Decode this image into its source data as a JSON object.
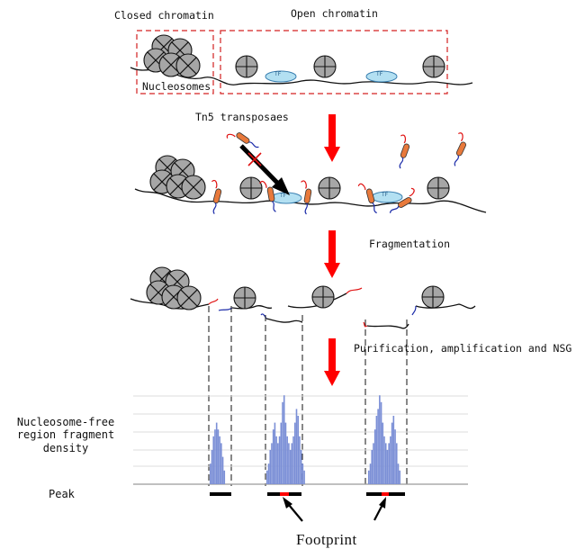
{
  "labels": {
    "closed_chromatin": "Closed chromatin",
    "open_chromatin": "Open chromatin",
    "nucleosomes": "Nucleosomes",
    "tn5": "Tn5 transposaes",
    "tf": "TF",
    "fragmentation": "Fragmentation",
    "purification": "Purification, amplification and NSG",
    "density_line1": "Nucleosome-free",
    "density_line2": "region fragment",
    "density_line3": "density",
    "peak": "Peak",
    "footprint": "Footprint"
  },
  "colors": {
    "arrow": "#ff0000",
    "nucleosome": "#a6a6a6",
    "tf": "#b3e0f2",
    "bars": "#7b8fd6",
    "transposase": "#e8793b",
    "footprint_mark": "#ff0000"
  },
  "chart_data": {
    "type": "bar",
    "title": "",
    "xlabel": "",
    "ylabel": "Nucleosome-free region fragment density",
    "grid": true,
    "series": [
      {
        "values": [
          3,
          5,
          7,
          8,
          9,
          8,
          7,
          6,
          4,
          2
        ]
      },
      {
        "values": [
          2,
          3,
          5,
          6,
          8,
          9,
          7,
          6,
          7,
          9,
          12,
          13,
          9,
          7,
          6,
          5,
          6,
          7,
          9,
          11,
          10,
          7,
          5,
          3,
          2
        ]
      },
      {
        "values": [
          2,
          3,
          5,
          6,
          8,
          10,
          11,
          13,
          12,
          9,
          7,
          6,
          5,
          6,
          7,
          9,
          10,
          8,
          6,
          3,
          2
        ]
      }
    ]
  }
}
